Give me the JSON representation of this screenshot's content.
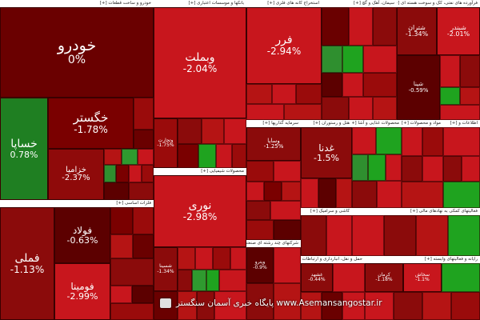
{
  "app": {
    "watermark_text": "پایگاه خبری آسمان سنگستر www.Asemansangostar.ir"
  },
  "colors": {
    "strong_red": "#8b0b0b",
    "red": "#c8161d",
    "dark_red": "#5c0000",
    "deep_red": "#6a0000",
    "green": "#2f8f2f",
    "bright_green": "#1fa31f"
  },
  "sectors": {
    "auto": "خودرو و ساخت قطعات [+]",
    "banks": "بانکها و موسسات اعتباری [+]",
    "realestate": "استخراج کانه های فلزی [+]",
    "cement": "سیمان، آهک و گچ [+]",
    "oil": "فرآورده های نفتی، کک و سوخت هسته ای [+]",
    "basicmetals": "فلزات اساسی [+]",
    "chemicals": "محصولات شیمیایی [+]",
    "investment": "سرمایه گذاریها [+]",
    "mass_lenders": "هتل و رستوران [+]",
    "food": "محصولات غذایی و آشا [+]",
    "pharma": "مواد و محصولات [+]",
    "tech": "اطلاعات و [+]",
    "nonmetal": "کاشی و سرامیک [+]",
    "leasing": "فعالیتهای کمکی به نهادهای مالی [+]",
    "transport": "حمل و نقل، انبارداری و ارتباطات [+]",
    "multi": "شرکتهای چند رشته ای صنعتی [+]",
    "computer": "رایانه و فعالیتهای وابسته [+]"
  },
  "tiles": {
    "khodro": {
      "name": "خودرو",
      "change": "0%"
    },
    "khegostar": {
      "name": "خگستر",
      "change": "-1.78%"
    },
    "khasapa": {
      "name": "خساپا",
      "change": "0.78%"
    },
    "khazamia": {
      "name": "خزامیا",
      "change": "-2.37%"
    },
    "vebmellat": {
      "name": "وبملت",
      "change": "-2.04%"
    },
    "vtejarat": {
      "name": "وتجارت",
      "change": "-1.75%"
    },
    "far": {
      "name": "فرر",
      "change": "-2.94%"
    },
    "shetran": {
      "name": "شتران",
      "change": "-1.34%"
    },
    "shebandar": {
      "name": "شبندر",
      "change": "-2.01%"
    },
    "shepna": {
      "name": "شپنا",
      "change": "-0.59%"
    },
    "fameli": {
      "name": "فملی",
      "change": "-1.13%"
    },
    "foolad": {
      "name": "فولاد",
      "change": "-0.63%"
    },
    "foomina": {
      "name": "فومینا",
      "change": "-2.99%"
    },
    "noori": {
      "name": "نوری",
      "change": "-2.98%"
    },
    "vsapa": {
      "name": "وساپا",
      "change": "-1.25%"
    },
    "ghanaa": {
      "name": "غدنا",
      "change": "-1.5%"
    },
    "shesina": {
      "name": "شسینا",
      "change": "-1.34%"
    },
    "vepetro": {
      "name": "وپترو",
      "change": "-0.9%"
    },
    "gheshahd": {
      "name": "غشهد",
      "change": "-0.44%"
    },
    "kehmaz": {
      "name": "کرمان",
      "change": "-1.18%"
    },
    "sarvand": {
      "name": "سخاش",
      "change": "-1.1%"
    }
  }
}
